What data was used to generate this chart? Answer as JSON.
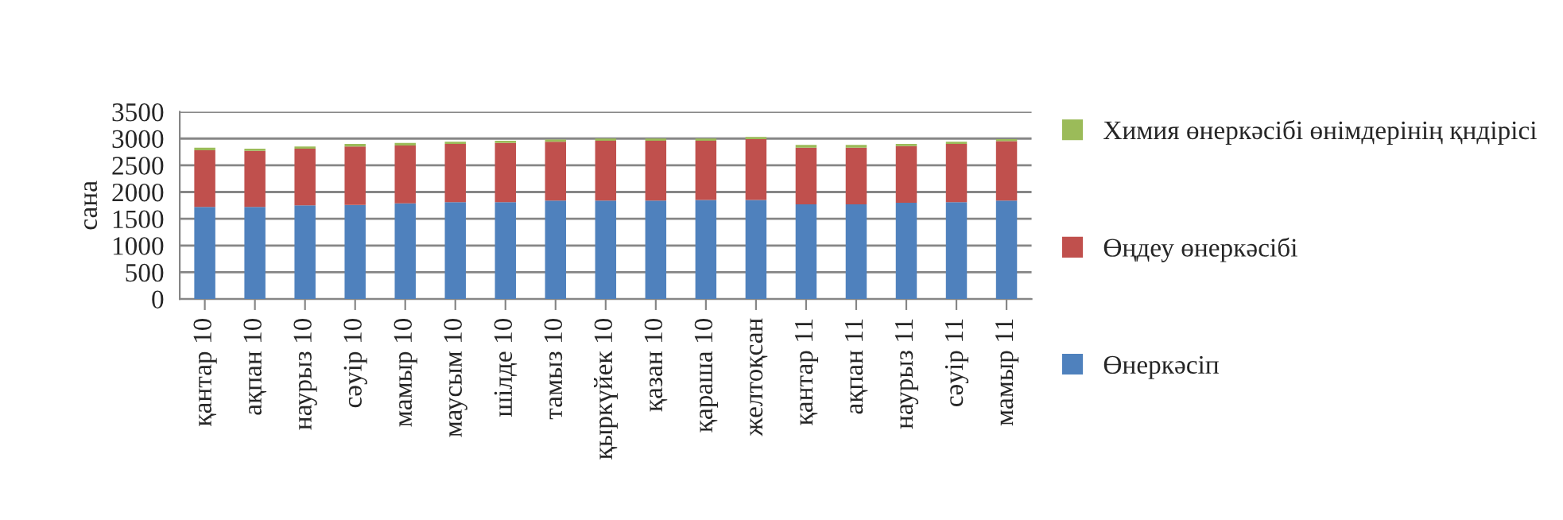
{
  "chart_data": {
    "type": "bar",
    "stacked": true,
    "ylabel": "сана",
    "categories": [
      "қантар 10",
      "ақпан 10",
      "наурыз 10",
      "сәуір 10",
      "мамыр 10",
      "маусым 10",
      "шілде 10",
      "тамыз 10",
      "қыркүйек 10",
      "қазан 10",
      "қараша 10",
      "желтоқсан",
      "қантар 11",
      "ақпан 11",
      "наурыз 11",
      "сәуір 11",
      "мамыр 11"
    ],
    "series": [
      {
        "name": "Өнеркәсіп",
        "color": "#4f81bd",
        "values": [
          1720,
          1720,
          1750,
          1760,
          1790,
          1810,
          1810,
          1840,
          1840,
          1840,
          1850,
          1850,
          1770,
          1770,
          1800,
          1810,
          1840
        ]
      },
      {
        "name": "Өңдеу өнеркәсібі",
        "color": "#c0504d",
        "values": [
          1060,
          1050,
          1060,
          1090,
          1080,
          1090,
          1110,
          1100,
          1120,
          1120,
          1110,
          1140,
          1060,
          1060,
          1060,
          1090,
          1110
        ]
      },
      {
        "name": "Химия өнеркәсібі өнімдерінің қндірісі",
        "color": "#9bbb59",
        "values": [
          50,
          40,
          40,
          50,
          50,
          40,
          40,
          40,
          40,
          40,
          40,
          40,
          50,
          50,
          40,
          40,
          40
        ]
      }
    ],
    "ylim": [
      0,
      3500
    ],
    "yticks": [
      0,
      500,
      1000,
      1500,
      2000,
      2500,
      3000,
      3500
    ],
    "grid": "y",
    "legend": "right"
  }
}
